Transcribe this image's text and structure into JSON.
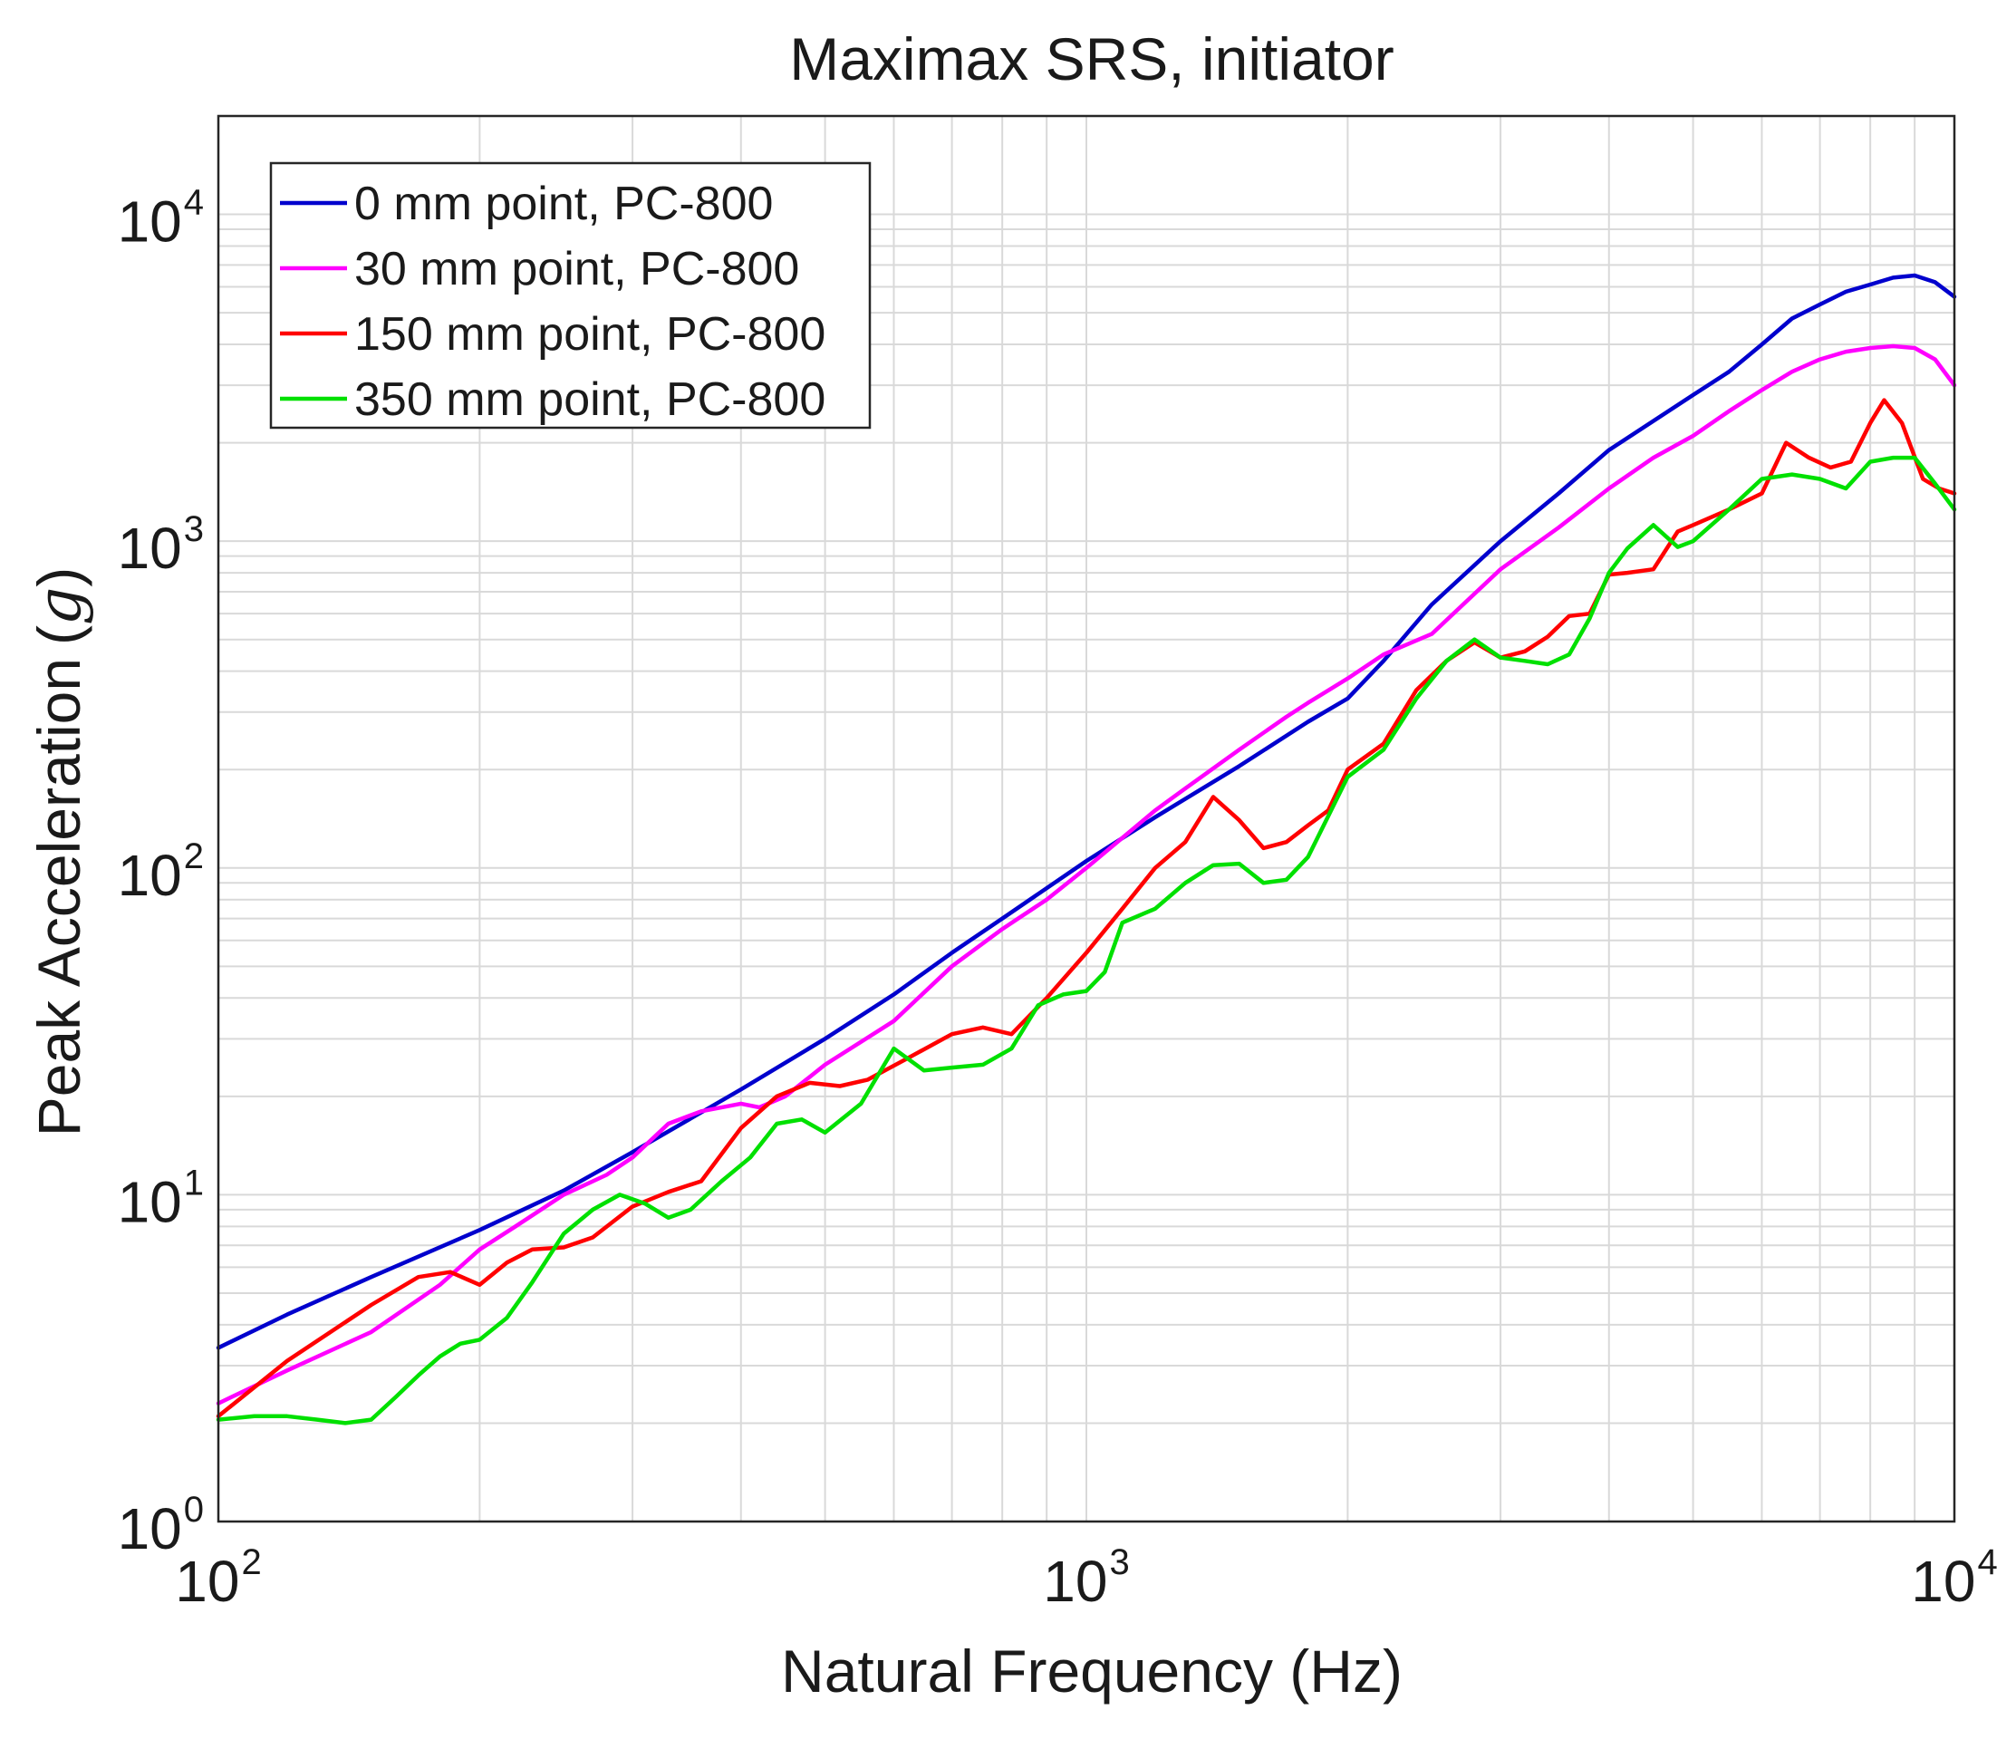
{
  "chart_data": {
    "type": "line",
    "title": "Maximax SRS, initiator",
    "xlabel": "Natural Frequency (Hz)",
    "ylabel": "Peak Acceleration",
    "ylabel_unit": "g",
    "xscale": "log",
    "yscale": "log",
    "xlim": [
      100,
      10000
    ],
    "ylim": [
      1,
      20000
    ],
    "grid": true,
    "legend_position": "top-left",
    "x_ticks": [
      {
        "value": 100,
        "base": "10",
        "exp": "2"
      },
      {
        "value": 1000,
        "base": "10",
        "exp": "3"
      },
      {
        "value": 10000,
        "base": "10",
        "exp": "4"
      }
    ],
    "y_ticks": [
      {
        "value": 1,
        "base": "10",
        "exp": "0"
      },
      {
        "value": 10,
        "base": "10",
        "exp": "1"
      },
      {
        "value": 100,
        "base": "10",
        "exp": "2"
      },
      {
        "value": 1000,
        "base": "10",
        "exp": "3"
      },
      {
        "value": 10000,
        "base": "10",
        "exp": "4"
      }
    ],
    "series": [
      {
        "name": "0 mm point, PC-800",
        "color": "#0000cd",
        "points": [
          [
            100,
            3.4
          ],
          [
            120,
            4.3
          ],
          [
            150,
            5.6
          ],
          [
            200,
            7.8
          ],
          [
            250,
            10.3
          ],
          [
            300,
            13.5
          ],
          [
            400,
            21
          ],
          [
            500,
            30
          ],
          [
            600,
            41
          ],
          [
            700,
            55
          ],
          [
            800,
            70
          ],
          [
            1000,
            105
          ],
          [
            1200,
            143
          ],
          [
            1500,
            205
          ],
          [
            1800,
            280
          ],
          [
            2000,
            330
          ],
          [
            2200,
            430
          ],
          [
            2500,
            640
          ],
          [
            3000,
            1000
          ],
          [
            3500,
            1400
          ],
          [
            4000,
            1900
          ],
          [
            5000,
            2800
          ],
          [
            5500,
            3300
          ],
          [
            6000,
            4000
          ],
          [
            6500,
            4800
          ],
          [
            7000,
            5300
          ],
          [
            7500,
            5800
          ],
          [
            8000,
            6100
          ],
          [
            8500,
            6400
          ],
          [
            9000,
            6500
          ],
          [
            9500,
            6200
          ],
          [
            10000,
            5600
          ]
        ]
      },
      {
        "name": "30 mm point, PC-800",
        "color": "#ff00ff",
        "points": [
          [
            100,
            2.3
          ],
          [
            120,
            2.9
          ],
          [
            150,
            3.8
          ],
          [
            180,
            5.3
          ],
          [
            200,
            6.8
          ],
          [
            220,
            8
          ],
          [
            250,
            10
          ],
          [
            280,
            11.5
          ],
          [
            300,
            13
          ],
          [
            330,
            16.5
          ],
          [
            360,
            18
          ],
          [
            400,
            19
          ],
          [
            420,
            18.5
          ],
          [
            450,
            20
          ],
          [
            500,
            25
          ],
          [
            600,
            34
          ],
          [
            700,
            50
          ],
          [
            800,
            65
          ],
          [
            900,
            80
          ],
          [
            1000,
            100
          ],
          [
            1200,
            150
          ],
          [
            1300,
            175
          ],
          [
            1500,
            230
          ],
          [
            1700,
            290
          ],
          [
            1800,
            320
          ],
          [
            2000,
            380
          ],
          [
            2200,
            450
          ],
          [
            2500,
            520
          ],
          [
            3000,
            820
          ],
          [
            3500,
            1100
          ],
          [
            4000,
            1450
          ],
          [
            4500,
            1800
          ],
          [
            5000,
            2100
          ],
          [
            5500,
            2500
          ],
          [
            6000,
            2900
          ],
          [
            6500,
            3300
          ],
          [
            7000,
            3600
          ],
          [
            7500,
            3800
          ],
          [
            8000,
            3900
          ],
          [
            8500,
            3950
          ],
          [
            9000,
            3900
          ],
          [
            9500,
            3600
          ],
          [
            10000,
            3000
          ]
        ]
      },
      {
        "name": "150 mm point, PC-800",
        "color": "#ff0000",
        "points": [
          [
            100,
            2.1
          ],
          [
            120,
            3.1
          ],
          [
            150,
            4.6
          ],
          [
            170,
            5.6
          ],
          [
            185,
            5.8
          ],
          [
            200,
            5.3
          ],
          [
            215,
            6.2
          ],
          [
            230,
            6.8
          ],
          [
            250,
            6.9
          ],
          [
            270,
            7.4
          ],
          [
            300,
            9.2
          ],
          [
            330,
            10.2
          ],
          [
            360,
            11
          ],
          [
            400,
            16
          ],
          [
            440,
            20
          ],
          [
            480,
            22
          ],
          [
            520,
            21.5
          ],
          [
            560,
            22.5
          ],
          [
            620,
            26
          ],
          [
            700,
            31
          ],
          [
            760,
            32.5
          ],
          [
            820,
            31
          ],
          [
            900,
            40
          ],
          [
            1000,
            55
          ],
          [
            1100,
            75
          ],
          [
            1200,
            100
          ],
          [
            1300,
            120
          ],
          [
            1400,
            165
          ],
          [
            1500,
            140
          ],
          [
            1600,
            115
          ],
          [
            1700,
            120
          ],
          [
            1800,
            135
          ],
          [
            1900,
            150
          ],
          [
            2000,
            200
          ],
          [
            2200,
            240
          ],
          [
            2400,
            350
          ],
          [
            2600,
            430
          ],
          [
            2800,
            490
          ],
          [
            3000,
            440
          ],
          [
            3200,
            460
          ],
          [
            3400,
            510
          ],
          [
            3600,
            590
          ],
          [
            3800,
            600
          ],
          [
            4000,
            790
          ],
          [
            4200,
            800
          ],
          [
            4500,
            820
          ],
          [
            4800,
            1070
          ],
          [
            5000,
            1120
          ],
          [
            5500,
            1250
          ],
          [
            6000,
            1400
          ],
          [
            6400,
            2000
          ],
          [
            6800,
            1800
          ],
          [
            7200,
            1680
          ],
          [
            7600,
            1750
          ],
          [
            8000,
            2300
          ],
          [
            8300,
            2700
          ],
          [
            8700,
            2300
          ],
          [
            9200,
            1550
          ],
          [
            9600,
            1450
          ],
          [
            10000,
            1400
          ]
        ]
      },
      {
        "name": "350 mm point, PC-800",
        "color": "#00e000",
        "points": [
          [
            100,
            2.05
          ],
          [
            110,
            2.1
          ],
          [
            120,
            2.1
          ],
          [
            130,
            2.05
          ],
          [
            140,
            2.0
          ],
          [
            150,
            2.05
          ],
          [
            160,
            2.4
          ],
          [
            170,
            2.8
          ],
          [
            180,
            3.2
          ],
          [
            190,
            3.5
          ],
          [
            200,
            3.6
          ],
          [
            215,
            4.2
          ],
          [
            230,
            5.4
          ],
          [
            250,
            7.6
          ],
          [
            270,
            9.0
          ],
          [
            290,
            10.0
          ],
          [
            310,
            9.4
          ],
          [
            330,
            8.5
          ],
          [
            350,
            9.0
          ],
          [
            380,
            11
          ],
          [
            410,
            13
          ],
          [
            440,
            16.5
          ],
          [
            470,
            17
          ],
          [
            500,
            15.5
          ],
          [
            550,
            19
          ],
          [
            600,
            28
          ],
          [
            650,
            24
          ],
          [
            700,
            24.5
          ],
          [
            760,
            25
          ],
          [
            820,
            28
          ],
          [
            880,
            38
          ],
          [
            940,
            41
          ],
          [
            1000,
            42
          ],
          [
            1050,
            48
          ],
          [
            1100,
            68
          ],
          [
            1200,
            75
          ],
          [
            1300,
            90
          ],
          [
            1400,
            102
          ],
          [
            1500,
            103
          ],
          [
            1600,
            90
          ],
          [
            1700,
            92
          ],
          [
            1800,
            108
          ],
          [
            2000,
            190
          ],
          [
            2200,
            230
          ],
          [
            2400,
            330
          ],
          [
            2600,
            430
          ],
          [
            2800,
            500
          ],
          [
            3000,
            440
          ],
          [
            3200,
            430
          ],
          [
            3400,
            420
          ],
          [
            3600,
            450
          ],
          [
            3800,
            580
          ],
          [
            4000,
            800
          ],
          [
            4200,
            950
          ],
          [
            4500,
            1120
          ],
          [
            4800,
            960
          ],
          [
            5000,
            1000
          ],
          [
            5500,
            1250
          ],
          [
            6000,
            1550
          ],
          [
            6500,
            1600
          ],
          [
            7000,
            1550
          ],
          [
            7500,
            1450
          ],
          [
            8000,
            1750
          ],
          [
            8500,
            1800
          ],
          [
            9000,
            1800
          ],
          [
            9500,
            1500
          ],
          [
            10000,
            1250
          ]
        ]
      }
    ]
  }
}
